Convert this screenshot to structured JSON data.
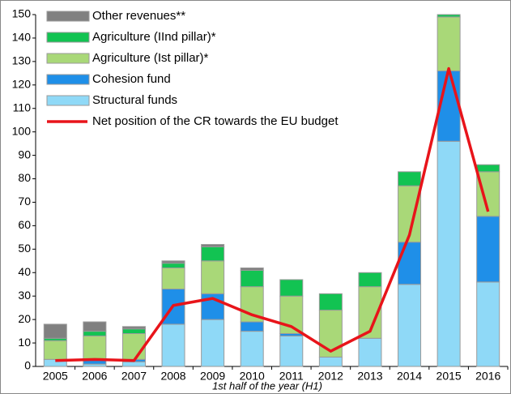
{
  "chart_data": {
    "type": "stacked-bar",
    "x_label": "1st half of the year (H1)",
    "categories": [
      "2005",
      "2006",
      "2007",
      "2008",
      "2009",
      "2010",
      "2011",
      "2012",
      "2013",
      "2014",
      "2015",
      "2016"
    ],
    "series": [
      {
        "name": "Structural funds",
        "color": "#8fd9f7",
        "values": [
          3,
          1,
          2,
          18,
          20,
          15,
          13,
          4,
          12,
          35,
          96,
          36
        ]
      },
      {
        "name": "Cohesion fund",
        "color": "#1f8fe8",
        "values": [
          0,
          2,
          1,
          15,
          11,
          4,
          1,
          0,
          0,
          18,
          30,
          28
        ]
      },
      {
        "name": "Agriculture (Ist pillar)*",
        "color": "#a9d878",
        "values": [
          8,
          10,
          11,
          9,
          14,
          15,
          16,
          20,
          22,
          24,
          23,
          19
        ]
      },
      {
        "name": "Agriculture (IInd pillar)*",
        "color": "#12c352",
        "values": [
          1,
          2,
          2,
          2,
          6,
          7,
          7,
          7,
          6,
          6,
          1,
          3
        ]
      },
      {
        "name": "Other revenues**",
        "color": "#808080",
        "values": [
          6,
          4,
          1,
          1,
          1,
          1,
          0,
          0,
          0,
          0,
          0,
          0
        ]
      },
      {
        "name": "Net position of the CR towards the EU budget",
        "type": "line",
        "color": "#e8141a",
        "values": [
          2.5,
          3,
          2.5,
          26,
          29,
          22,
          17,
          6.5,
          15,
          56,
          127,
          66
        ]
      }
    ],
    "ylim": [
      0,
      150
    ],
    "yticks": [
      0,
      10,
      20,
      30,
      40,
      50,
      60,
      70,
      80,
      90,
      100,
      110,
      120,
      130,
      140,
      150
    ]
  }
}
